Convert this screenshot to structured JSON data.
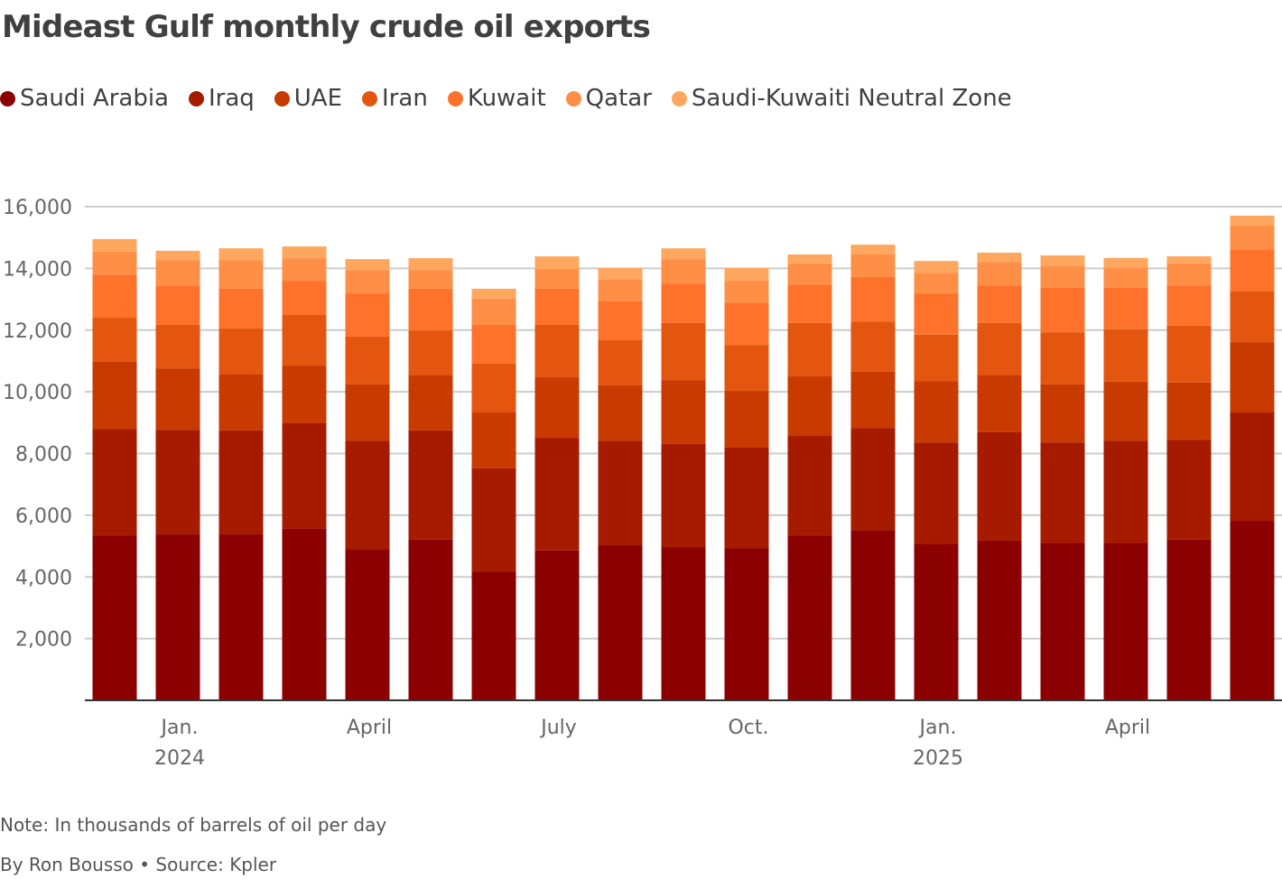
{
  "chart_data": {
    "type": "bar",
    "stacked": true,
    "title": "Mideast Gulf monthly crude oil exports",
    "ylim": [
      0,
      16000
    ],
    "y_ticks": [
      2000,
      4000,
      6000,
      8000,
      10000,
      12000,
      14000,
      16000
    ],
    "y_tick_labels": [
      "2,000",
      "4,000",
      "6,000",
      "8,000",
      "10,000",
      "12,000",
      "14,000",
      "16,000"
    ],
    "grid": true,
    "legend_position": "top",
    "x_ticks": [
      {
        "index": 1,
        "label": "Jan.",
        "sublabel": "2024"
      },
      {
        "index": 4,
        "label": "April",
        "sublabel": ""
      },
      {
        "index": 7,
        "label": "July",
        "sublabel": ""
      },
      {
        "index": 10,
        "label": "Oct.",
        "sublabel": ""
      },
      {
        "index": 13,
        "label": "Jan.",
        "sublabel": "2025"
      },
      {
        "index": 16,
        "label": "April",
        "sublabel": ""
      }
    ],
    "series": [
      {
        "name": "Saudi Arabia",
        "color": "#8b0000",
        "values": [
          5350,
          5380,
          5380,
          5560,
          4910,
          5210,
          4180,
          4860,
          5030,
          4970,
          4940,
          5350,
          5500,
          5060,
          5180,
          5090,
          5090,
          5210,
          5820
        ]
      },
      {
        "name": "Iraq",
        "color": "#a61a00",
        "values": [
          3450,
          3390,
          3370,
          3420,
          3510,
          3540,
          3340,
          3650,
          3390,
          3340,
          3250,
          3220,
          3330,
          3300,
          3510,
          3270,
          3330,
          3240,
          3510
        ]
      },
      {
        "name": "UAE",
        "color": "#c83a00",
        "values": [
          2170,
          1990,
          1810,
          1870,
          1820,
          1780,
          1810,
          1960,
          1790,
          2070,
          1840,
          1930,
          1820,
          1990,
          1840,
          1880,
          1910,
          1850,
          2280
        ]
      },
      {
        "name": "Iran",
        "color": "#e4560f",
        "values": [
          1430,
          1410,
          1490,
          1640,
          1550,
          1460,
          1580,
          1700,
          1460,
          1850,
          1490,
          1730,
          1630,
          1500,
          1700,
          1690,
          1700,
          1840,
          1640
        ]
      },
      {
        "name": "Kuwait",
        "color": "#ff722b",
        "values": [
          1400,
          1280,
          1290,
          1110,
          1400,
          1350,
          1260,
          1170,
          1260,
          1280,
          1350,
          1250,
          1440,
          1340,
          1220,
          1440,
          1340,
          1310,
          1370
        ]
      },
      {
        "name": "Qatar",
        "color": "#ff8f47",
        "values": [
          740,
          820,
          930,
          730,
          760,
          610,
          850,
          640,
          700,
          790,
          730,
          680,
          730,
          670,
          760,
          700,
          640,
          710,
          790
        ]
      },
      {
        "name": "Saudi-Kuwaiti Neutral Zone",
        "color": "#ffa75e",
        "values": [
          410,
          300,
          380,
          380,
          350,
          380,
          320,
          410,
          380,
          350,
          410,
          290,
          320,
          380,
          300,
          350,
          330,
          230,
          300
        ]
      }
    ]
  },
  "notes": {
    "note": "Note: In thousands of barrels of oil per day",
    "credit": "By Ron Bousso • Source: Kpler"
  }
}
